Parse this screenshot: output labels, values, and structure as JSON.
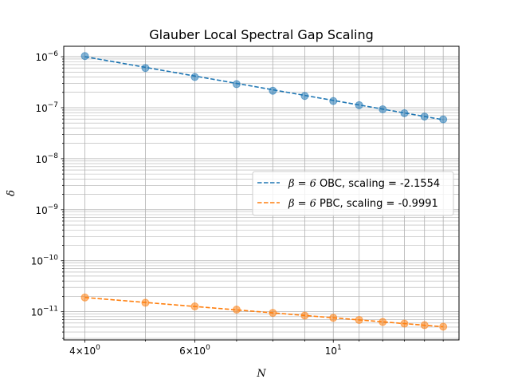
{
  "chart_data": {
    "type": "scatter",
    "title": "Glauber Local Spectral Gap Scaling",
    "xlabel": "N",
    "ylabel": "δ",
    "xscale": "log",
    "yscale": "log",
    "xlim": [
      3.7,
      15.9
    ],
    "ylim": [
      2.8e-12,
      1.6e-06
    ],
    "grid": true,
    "grid_minor": true,
    "legend_placement": "center-right",
    "x_tick_labels": [
      {
        "value": 4,
        "base": "4",
        "times": "×",
        "ten": "10",
        "exp": "0"
      },
      {
        "value": 6,
        "base": "6",
        "times": "×",
        "ten": "10",
        "exp": "0"
      },
      {
        "value": 10,
        "base": "",
        "times": "",
        "ten": "10",
        "exp": "1"
      }
    ],
    "y_tick_labels": [
      {
        "value": 1e-11,
        "ten": "10",
        "exp": "−11"
      },
      {
        "value": 1e-10,
        "ten": "10",
        "exp": "−10"
      },
      {
        "value": 1e-09,
        "ten": "10",
        "exp": "−9"
      },
      {
        "value": 1e-08,
        "ten": "10",
        "exp": "−8"
      },
      {
        "value": 1e-07,
        "ten": "10",
        "exp": "−7"
      },
      {
        "value": 1e-06,
        "ten": "10",
        "exp": "−6"
      }
    ],
    "series": [
      {
        "label_prefix": "β = 6",
        "label_rest": "OBC, scaling = -2.1554",
        "color": "#1f77b4",
        "x": [
          4,
          5,
          6,
          7,
          8,
          9,
          10,
          11,
          12,
          13,
          14,
          15
        ],
        "y": [
          1.03e-06,
          6e-07,
          4e-07,
          2.9e-07,
          2.15e-07,
          1.7e-07,
          1.35e-07,
          1.12e-07,
          9.3e-08,
          7.8e-08,
          6.7e-08,
          5.9e-08
        ],
        "fit_points": [
          [
            4,
            1e-06
          ],
          [
            15,
            5.8e-08
          ]
        ]
      },
      {
        "label_prefix": "β = 6",
        "label_rest": "PBC, scaling = -0.9991",
        "color": "#ff7f0e",
        "x": [
          4,
          5,
          6,
          7,
          8,
          9,
          10,
          11,
          12,
          13,
          14,
          15
        ],
        "y": [
          1.9e-11,
          1.5e-11,
          1.27e-11,
          1.1e-11,
          9.5e-12,
          8.4e-12,
          7.6e-12,
          6.9e-12,
          6.3e-12,
          5.85e-12,
          5.45e-12,
          5.1e-12
        ],
        "fit_points": [
          [
            4,
            1.9e-11
          ],
          [
            15,
            5.07e-12
          ]
        ]
      }
    ]
  }
}
